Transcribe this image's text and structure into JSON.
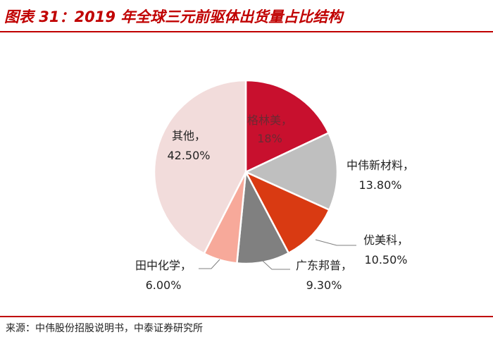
{
  "header": {
    "title": "图表 31：2019 年全球三元前驱体出货量占比结构"
  },
  "footer": {
    "source": "来源：中伟股份招股说明书，中泰证券研究所"
  },
  "chart_data": {
    "type": "pie",
    "title": "2019 年全球三元前驱体出货量占比结构",
    "start_angle_deg": 0,
    "direction": "clockwise",
    "slices": [
      {
        "name": "格林美",
        "value": 18,
        "label_value": "18%",
        "color": "#c8102e"
      },
      {
        "name": "中伟新材料",
        "value": 13.8,
        "label_value": "13.80%",
        "color": "#bfbfbf"
      },
      {
        "name": "优美科",
        "value": 10.5,
        "label_value": "10.50%",
        "color": "#d93a12"
      },
      {
        "name": "广东邦普",
        "value": 9.3,
        "label_value": "9.30%",
        "color": "#808080"
      },
      {
        "name": "田中化学",
        "value": 6.0,
        "label_value": "6.00%",
        "color": "#f7a99a"
      },
      {
        "name": "其他",
        "value": 42.5,
        "label_value": "42.50%",
        "color": "#f2dcdb"
      }
    ]
  }
}
